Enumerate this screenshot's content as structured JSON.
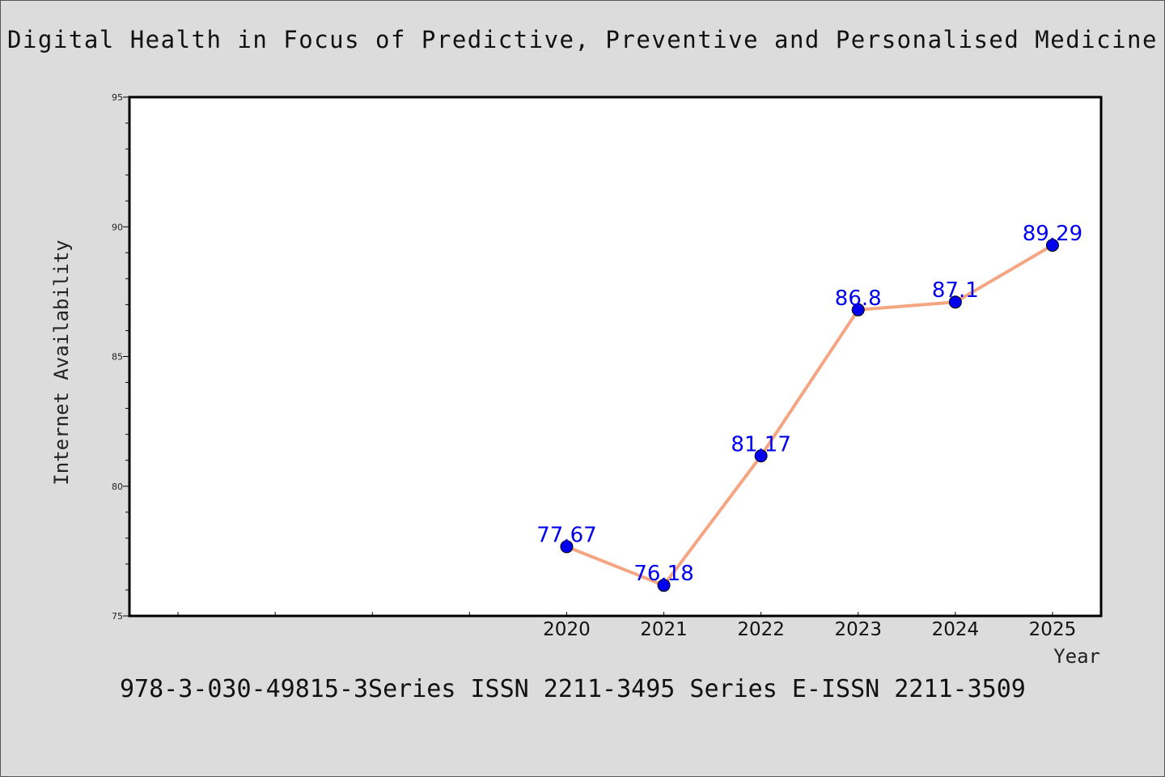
{
  "chart_data": {
    "type": "line",
    "title": "Digital Health in Focus of Predictive, Preventive and Personalised Medicine",
    "xlabel": "Year",
    "ylabel": "Internet Availability",
    "x": [
      "2020",
      "2021",
      "2022",
      "2023",
      "2024",
      "2025"
    ],
    "series": [
      {
        "values": [
          77.67,
          76.18,
          81.17,
          86.8,
          87.1,
          89.29
        ]
      }
    ],
    "data_labels": [
      "77.67",
      "76.18",
      "81.17",
      "86.8",
      "87.1",
      "89.29"
    ],
    "ylim": [
      75,
      95
    ],
    "y_ticks": [
      75,
      80,
      85,
      90,
      95
    ],
    "x_range": [
      2015.5,
      2025.5
    ],
    "grid": false,
    "line_color": "#f4a582",
    "marker_color": "#0000ee",
    "label_color": "#0000ee"
  },
  "footer": "978-3-030-49815-3Series ISSN 2211-3495 Series E-ISSN 2211-3509"
}
